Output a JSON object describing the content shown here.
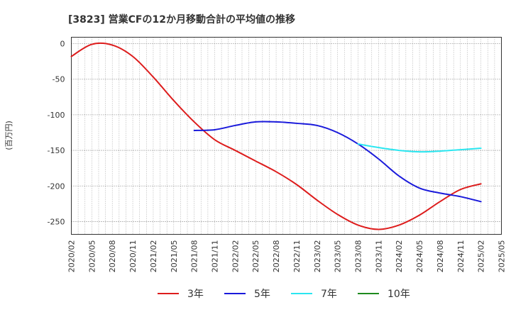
{
  "chart_data": {
    "type": "line",
    "title": "[3823]  営業CFの12か月移動合計の平均値の推移",
    "ylabel": "(百万円)",
    "xlabel": "",
    "ylim": [
      -268,
      9
    ],
    "yticks": [
      0,
      -50,
      -100,
      -150,
      -200,
      -250
    ],
    "x_ticks": [
      "2020/02",
      "2020/05",
      "2020/08",
      "2020/11",
      "2021/02",
      "2021/05",
      "2021/08",
      "2021/11",
      "2022/02",
      "2022/05",
      "2022/08",
      "2022/11",
      "2023/02",
      "2023/05",
      "2023/08",
      "2023/11",
      "2024/02",
      "2024/05",
      "2024/08",
      "2024/11",
      "2025/02",
      "2025/05"
    ],
    "grid": true,
    "legend_position": "bottom",
    "series": [
      {
        "name": "3年",
        "color": "#dd1c1c",
        "x": [
          "2020/02",
          "2020/05",
          "2020/08",
          "2020/11",
          "2021/02",
          "2021/05",
          "2021/08",
          "2021/11",
          "2022/02",
          "2022/05",
          "2022/08",
          "2022/11",
          "2023/02",
          "2023/05",
          "2023/08",
          "2023/11",
          "2024/02",
          "2024/05",
          "2024/08",
          "2024/11",
          "2025/02"
        ],
        "values": [
          -18,
          -1,
          -2,
          -18,
          -47,
          -80,
          -110,
          -135,
          -150,
          -165,
          -180,
          -198,
          -220,
          -240,
          -255,
          -261,
          -255,
          -241,
          -222,
          -205,
          -197
        ]
      },
      {
        "name": "5年",
        "color": "#1a1adb",
        "x": [
          "2021/08",
          "2021/11",
          "2022/02",
          "2022/05",
          "2022/08",
          "2022/11",
          "2023/02",
          "2023/05",
          "2023/08",
          "2023/11",
          "2024/02",
          "2024/05",
          "2024/08",
          "2024/11",
          "2025/02"
        ],
        "values": [
          -122,
          -121,
          -115,
          -110,
          -110,
          -112,
          -115,
          -125,
          -141,
          -162,
          -186,
          -203,
          -210,
          -215,
          -222
        ]
      },
      {
        "name": "7年",
        "color": "#2be6f0",
        "x": [
          "2023/08",
          "2023/11",
          "2024/02",
          "2024/05",
          "2024/08",
          "2024/11",
          "2025/02"
        ],
        "values": [
          -141,
          -146,
          -150,
          -152,
          -151,
          -149,
          -147
        ]
      },
      {
        "name": "10年",
        "color": "#1e8a1e",
        "x": [],
        "values": []
      }
    ]
  }
}
